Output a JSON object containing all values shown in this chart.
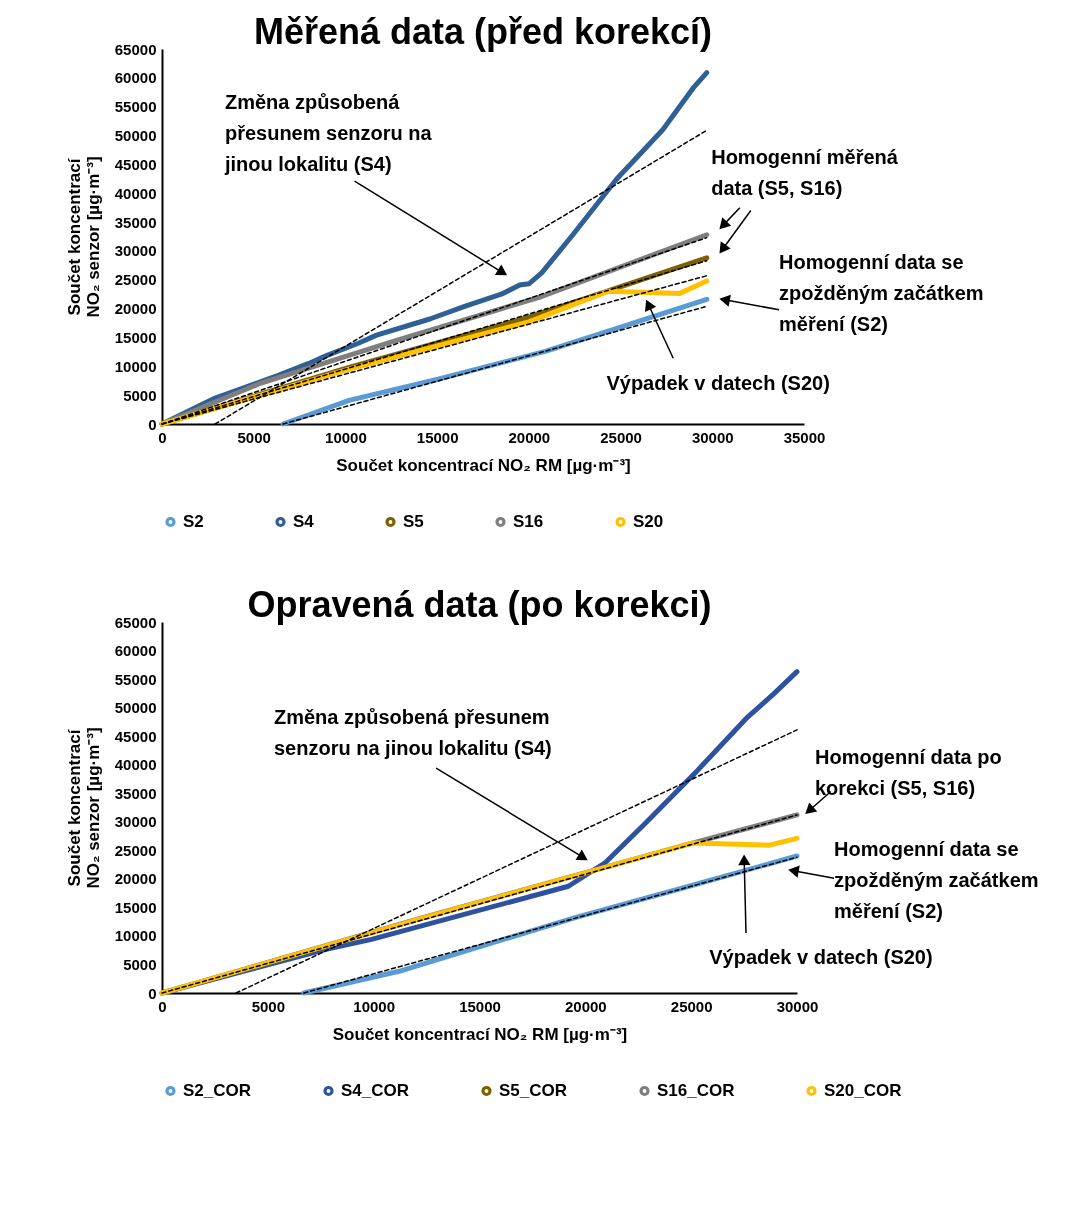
{
  "chart_data": [
    {
      "type": "line",
      "title": "Měřená data (před korekcí)",
      "xlabel": "Součet koncentrací NO₂ RM [µg·m⁻³]",
      "ylabel": "Součet koncentrací\nNO₂ senzor [µg·m⁻³]",
      "xlim": [
        0,
        35000
      ],
      "xticks": [
        0,
        5000,
        10000,
        15000,
        20000,
        25000,
        30000,
        35000
      ],
      "ylim": [
        0,
        65000
      ],
      "yticks": [
        0,
        5000,
        10000,
        15000,
        20000,
        25000,
        30000,
        35000,
        40000,
        45000,
        50000,
        55000,
        60000,
        65000
      ],
      "legend": "bottom",
      "series": [
        {
          "name": "S2",
          "color": "#5b9bd5",
          "x": [
            6600,
            10200,
            15100,
            20900,
            29700
          ],
          "values": [
            0,
            4100,
            7800,
            12600,
            21600
          ]
        },
        {
          "name": "S4",
          "color": "#2e6096",
          "x": [
            0,
            2900,
            6300,
            8000,
            9000,
            10700,
            11700,
            14600,
            16500,
            18500,
            19500,
            20000,
            20700,
            22400,
            24800,
            27300,
            29000,
            29700
          ],
          "values": [
            0,
            4500,
            8400,
            10500,
            11900,
            14000,
            15400,
            18200,
            20400,
            22500,
            24100,
            24300,
            26200,
            32800,
            42500,
            51000,
            58400,
            60900
          ]
        },
        {
          "name": "S5",
          "color": "#7f6000",
          "x": [
            0,
            10200,
            20000,
            29700
          ],
          "values": [
            0,
            9800,
            18500,
            28800
          ]
        },
        {
          "name": "S16",
          "color": "#7f7f7f",
          "x": [
            0,
            5400,
            12700,
            20700,
            29700
          ],
          "values": [
            0,
            7100,
            14400,
            22100,
            32800
          ]
        },
        {
          "name": "S20",
          "color": "#ffc000",
          "x": [
            0,
            10200,
            20000,
            24300,
            28200,
            29700
          ],
          "values": [
            0,
            9500,
            17700,
            23000,
            22600,
            24800
          ]
        },
        {
          "type": "line",
          "color": "#000000",
          "line_style": "dashed",
          "x": [
            2900,
            29700
          ],
          "values": [
            0,
            50900
          ]
        },
        {
          "type": "line",
          "color": "#000000",
          "line_style": "dashed",
          "x": [
            0,
            29700
          ],
          "values": [
            0,
            32300
          ]
        },
        {
          "type": "line",
          "color": "#000000",
          "line_style": "dashed",
          "x": [
            0,
            29700
          ],
          "values": [
            0,
            28300
          ]
        },
        {
          "type": "line",
          "color": "#000000",
          "line_style": "dashed",
          "x": [
            0,
            29700
          ],
          "values": [
            0,
            25700
          ]
        },
        {
          "type": "line",
          "color": "#000000",
          "line_style": "dashed",
          "x": [
            6600,
            29700
          ],
          "values": [
            0,
            20400
          ]
        }
      ],
      "annotations": [
        "Změna způsobená\npřesunem senzoru na\njinou lokalitu (S4)",
        "Homogenní měřená\ndata (S5, S16)",
        "Homogenní data se\nzpožděným začátkem\nměření (S2)",
        "Výpadek v datech (S20)"
      ]
    },
    {
      "type": "line",
      "title": "Opravená data (po korekci)",
      "xlabel": "Součet koncentrací NO₂ RM [µg·m⁻³]",
      "ylabel": "Součet koncentrací\nNO₂ senzor [µg·m⁻³]",
      "xlim": [
        0,
        30000
      ],
      "xticks": [
        0,
        5000,
        10000,
        15000,
        20000,
        25000,
        30000
      ],
      "ylim": [
        0,
        65000
      ],
      "yticks": [
        0,
        5000,
        10000,
        15000,
        20000,
        25000,
        30000,
        35000,
        40000,
        45000,
        50000,
        55000,
        60000,
        65000
      ],
      "legend": "bottom",
      "series": [
        {
          "name": "S2_COR",
          "color": "#5b9bd5",
          "x": [
            6700,
            11200,
            19600,
            24900,
            30000
          ],
          "values": [
            0,
            3800,
            13300,
            18700,
            24000
          ]
        },
        {
          "name": "S4_COR",
          "color": "#2f52a0",
          "x": [
            0,
            7800,
            9900,
            19200,
            20500,
            20900,
            22800,
            25300,
            27600,
            28900,
            30000
          ],
          "values": [
            0,
            7700,
            9400,
            18700,
            21800,
            22700,
            29600,
            39000,
            48100,
            52400,
            56300
          ]
        },
        {
          "name": "S5_COR",
          "color": "#7f6000",
          "values": [
            null
          ]
        },
        {
          "name": "S16_COR",
          "color": "#7f7f7f",
          "x": [
            0,
            12400,
            25100,
            30000
          ],
          "values": [
            0,
            13300,
            26300,
            31200
          ]
        },
        {
          "name": "S20_COR",
          "color": "#ffc000",
          "x": [
            0,
            12400,
            25100,
            28700,
            30000
          ],
          "values": [
            0,
            13200,
            26300,
            25900,
            27100
          ]
        },
        {
          "type": "line",
          "color": "#000000",
          "line_style": "dashed",
          "x": [
            3500,
            30000
          ],
          "values": [
            0,
            46100
          ]
        },
        {
          "type": "line",
          "color": "#000000",
          "line_style": "dashed",
          "x": [
            0,
            30000
          ],
          "values": [
            0,
            31200
          ]
        },
        {
          "type": "line",
          "color": "#000000",
          "line_style": "dashed",
          "x": [
            6700,
            30000
          ],
          "values": [
            0,
            23800
          ]
        }
      ],
      "annotations": [
        "Změna způsobená přesunem\nsenzoru na jinou lokalitu (S4)",
        "Homogenní data po\nkorekci (S5, S16)",
        "Homogenní data se\nzpožděným začátkem\nměření (S2)",
        "Výpadek v datech (S20)"
      ]
    }
  ]
}
